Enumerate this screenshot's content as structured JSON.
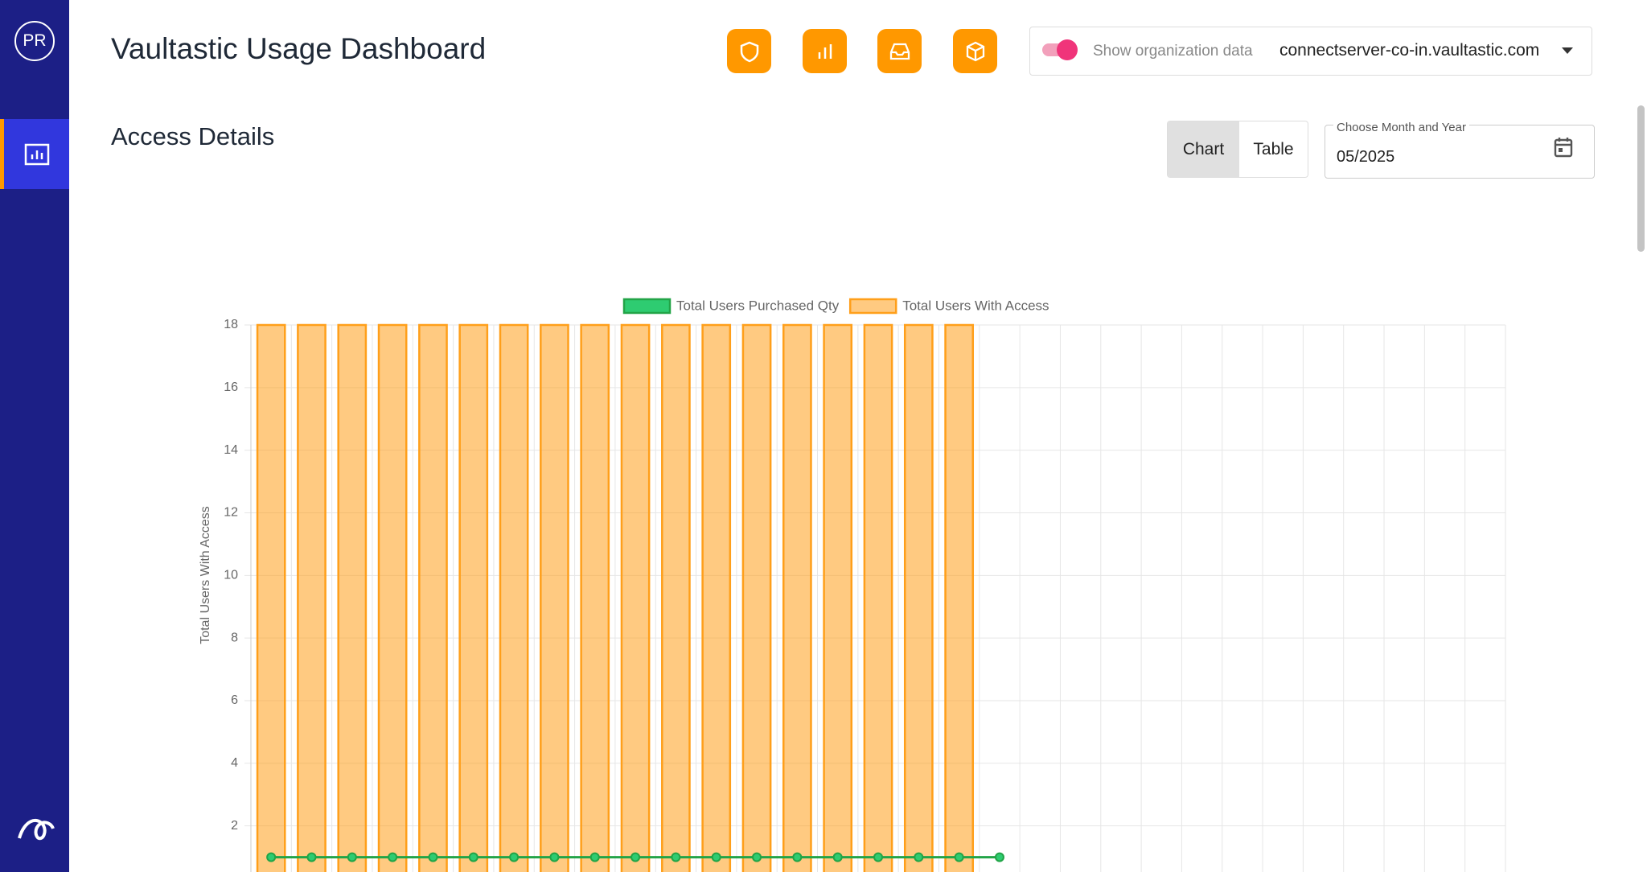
{
  "sidebar": {
    "avatar": "PR"
  },
  "header": {
    "title": "Vaultastic Usage Dashboard",
    "toggle_label": "Show organization data",
    "domain": "connectserver-co-in.vaultastic.com"
  },
  "section": {
    "title": "Access Details",
    "view_options": [
      "Chart",
      "Table"
    ],
    "date_label": "Choose Month and Year",
    "date_value": "05/2025"
  },
  "chart_data": {
    "type": "bar",
    "y_label": "Total Users With Access",
    "categories": [
      null,
      null,
      null,
      null,
      null,
      null,
      null,
      null,
      null,
      null,
      null,
      null,
      null,
      null,
      null,
      null,
      null,
      null,
      null,
      null,
      null,
      null,
      null,
      null,
      null,
      null,
      null,
      null,
      null,
      null,
      null
    ],
    "series": [
      {
        "name": "Total Users Purchased Qty",
        "type": "line",
        "color": "#22a447",
        "values": [
          1,
          1,
          1,
          1,
          1,
          1,
          1,
          1,
          1,
          1,
          1,
          1,
          1,
          1,
          1,
          1,
          1,
          1,
          1,
          null,
          null,
          null,
          null,
          null,
          null,
          null,
          null,
          null,
          null,
          null,
          null
        ]
      },
      {
        "name": "Total Users With Access",
        "type": "bar",
        "color": "#ff9f1a",
        "values": [
          18,
          18,
          18,
          18,
          18,
          18,
          18,
          18,
          18,
          18,
          18,
          18,
          18,
          18,
          18,
          18,
          18,
          18,
          null,
          null,
          null,
          null,
          null,
          null,
          null,
          null,
          null,
          null,
          null,
          null,
          null
        ]
      }
    ],
    "ylim": [
      0,
      18
    ],
    "yticks": [
      2,
      4,
      6,
      8,
      10,
      12,
      14,
      16,
      18
    ],
    "grid": true
  }
}
